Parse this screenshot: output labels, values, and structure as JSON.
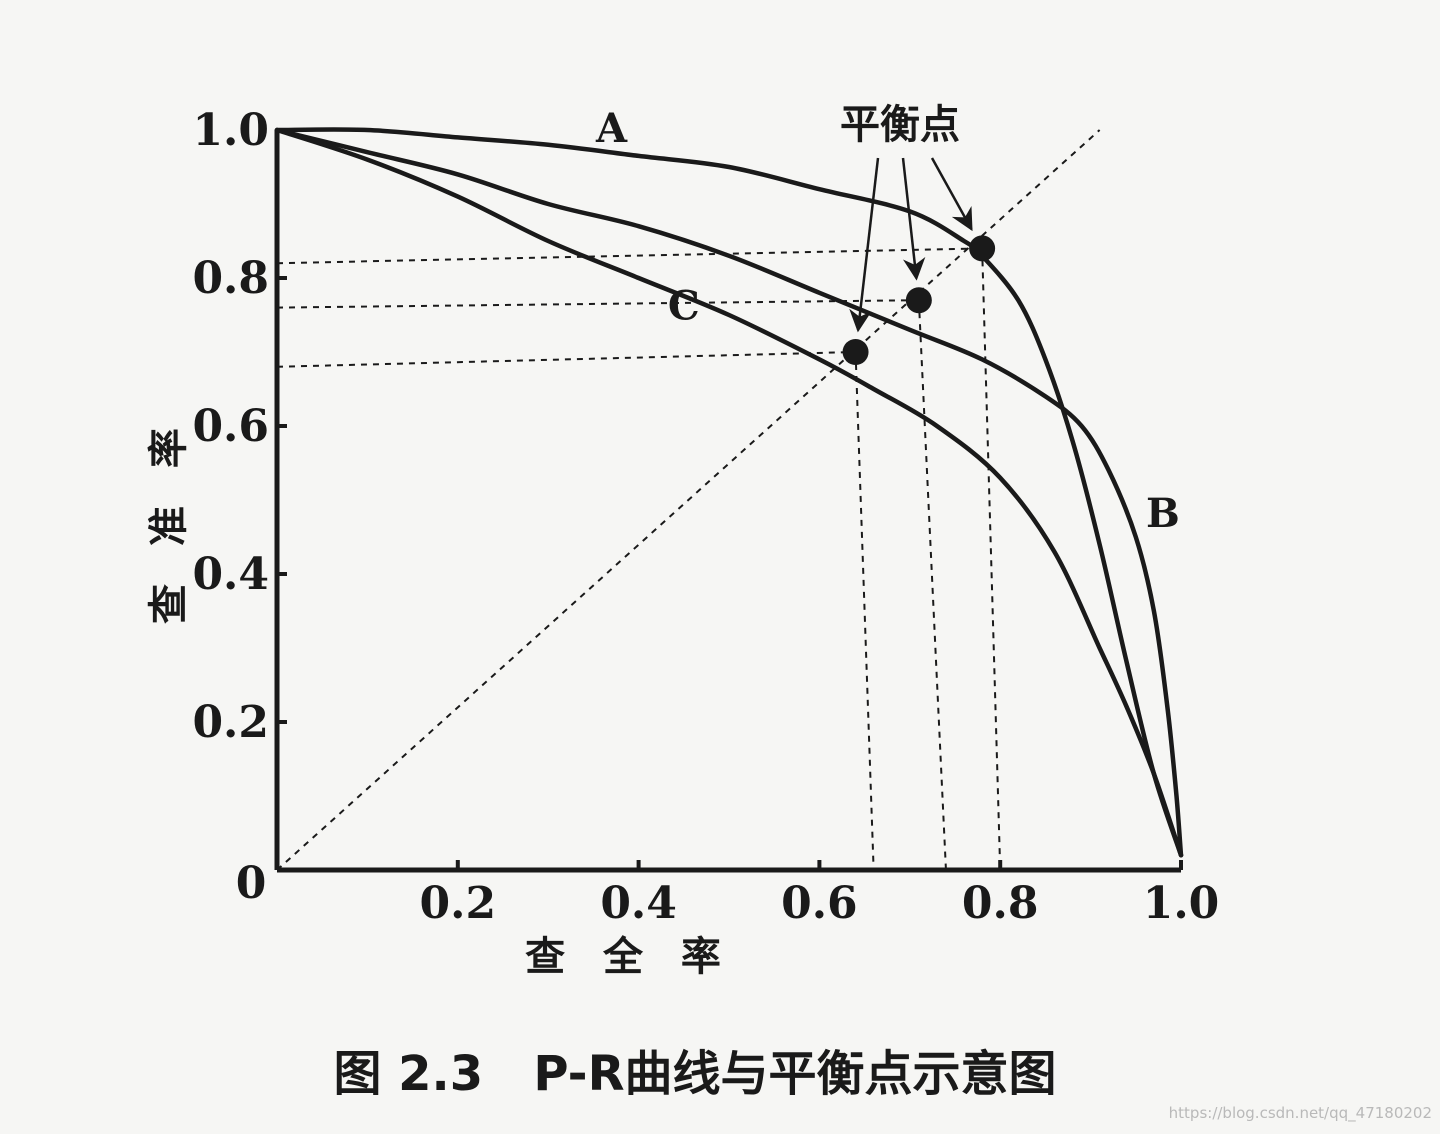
{
  "caption": "图 2.3   P-R曲线与平衡点示意图",
  "watermark": "https://blog.csdn.net/qq_47180202",
  "chart_data": {
    "type": "line",
    "title": "",
    "xlabel": "查 全 率",
    "ylabel": "查 准 率",
    "xlim": [
      0,
      1.0
    ],
    "ylim": [
      0,
      1.0
    ],
    "x_ticks": [
      {
        "value": 0.2,
        "label": "0.2"
      },
      {
        "value": 0.4,
        "label": "0.4"
      },
      {
        "value": 0.6,
        "label": "0.6"
      },
      {
        "value": 0.8,
        "label": "0.8"
      },
      {
        "value": 1.0,
        "label": "1.0"
      }
    ],
    "y_ticks": [
      {
        "value": 0.2,
        "label": "0.2"
      },
      {
        "value": 0.4,
        "label": "0.4"
      },
      {
        "value": 0.6,
        "label": "0.6"
      },
      {
        "value": 0.8,
        "label": "0.8"
      },
      {
        "value": 1.0,
        "label": "1.0"
      }
    ],
    "origin_label": "0",
    "grid": false,
    "series": [
      {
        "name": "A",
        "x": [
          0,
          0.1,
          0.2,
          0.3,
          0.4,
          0.5,
          0.6,
          0.7,
          0.76,
          0.78,
          0.82,
          0.85,
          0.88,
          0.91,
          0.94,
          0.97,
          1.0
        ],
        "y": [
          1.0,
          1.0,
          0.99,
          0.98,
          0.965,
          0.95,
          0.92,
          0.89,
          0.85,
          0.83,
          0.77,
          0.69,
          0.58,
          0.44,
          0.28,
          0.13,
          0.02
        ]
      },
      {
        "name": "B",
        "x": [
          0,
          0.1,
          0.2,
          0.3,
          0.4,
          0.5,
          0.6,
          0.7,
          0.78,
          0.85,
          0.89,
          0.92,
          0.95,
          0.97,
          0.985,
          0.995,
          1.0
        ],
        "y": [
          1.0,
          0.97,
          0.94,
          0.9,
          0.87,
          0.83,
          0.78,
          0.73,
          0.69,
          0.64,
          0.6,
          0.54,
          0.45,
          0.35,
          0.22,
          0.1,
          0.02
        ]
      },
      {
        "name": "C",
        "x": [
          0,
          0.1,
          0.2,
          0.3,
          0.4,
          0.5,
          0.6,
          0.66,
          0.73,
          0.8,
          0.86,
          0.91,
          0.94,
          0.97,
          1.0
        ],
        "y": [
          1.0,
          0.96,
          0.91,
          0.85,
          0.8,
          0.75,
          0.69,
          0.65,
          0.6,
          0.53,
          0.43,
          0.3,
          0.22,
          0.13,
          0.02
        ]
      }
    ],
    "diagonal": {
      "from": [
        0,
        0
      ],
      "to": [
        0.91,
        1.0
      ],
      "style": "dashed"
    },
    "break_even_points": [
      {
        "series": "A",
        "x": 0.78,
        "y": 0.84,
        "x_guide": 0.8,
        "y_guide": 0.82
      },
      {
        "series": "B",
        "x": 0.71,
        "y": 0.77,
        "x_guide": 0.74,
        "y_guide": 0.76
      },
      {
        "series": "C",
        "x": 0.64,
        "y": 0.7,
        "x_guide": 0.66,
        "y_guide": 0.68
      }
    ],
    "annotation": {
      "text": "平衡点",
      "arrows_to": [
        "C",
        "B",
        "A"
      ]
    },
    "labels": [
      {
        "series": "A",
        "text": "A",
        "x": 0.37,
        "y": 1.0
      },
      {
        "series": "B",
        "text": "B",
        "x": 0.98,
        "y": 0.48
      },
      {
        "series": "C",
        "text": "C",
        "x": 0.45,
        "y": 0.76
      }
    ]
  }
}
